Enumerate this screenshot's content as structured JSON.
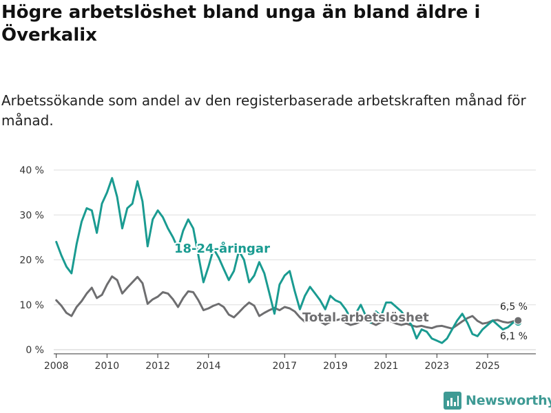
{
  "header": {
    "title": "Högre arbetslöshet bland unga än bland äldre i Överkalix",
    "subtitle": "Arbetssökande som andel av den registerbaserade arbetskraften månad för månad."
  },
  "brand": {
    "name": "Newsworthy"
  },
  "chart_data": {
    "type": "line",
    "title": "Högre arbetslöshet bland unga än bland äldre i Överkalix",
    "subtitle": "Arbetssökande som andel av den registerbaserade arbetskraften månad för månad.",
    "xlabel": "",
    "ylabel": "",
    "ylim": [
      0,
      40
    ],
    "xlim": [
      2007.9,
      2026.9
    ],
    "grid": true,
    "y_ticks": [
      {
        "value": 0,
        "label": "0 %"
      },
      {
        "value": 10,
        "label": "10 %"
      },
      {
        "value": 20,
        "label": "20 %"
      },
      {
        "value": 30,
        "label": "30 %"
      },
      {
        "value": 40,
        "label": "40 %"
      }
    ],
    "x_ticks": [
      {
        "value": 2008,
        "label": "2008"
      },
      {
        "value": 2010,
        "label": "2010"
      },
      {
        "value": 2012,
        "label": "2012"
      },
      {
        "value": 2014,
        "label": "2014"
      },
      {
        "value": 2017,
        "label": "2017"
      },
      {
        "value": 2019,
        "label": "2019"
      },
      {
        "value": 2021,
        "label": "2021"
      },
      {
        "value": 2023,
        "label": "2023"
      },
      {
        "value": 2025,
        "label": "2025"
      }
    ],
    "series": [
      {
        "name": "Total arbetslöshet",
        "label": "Total arbetslöshet",
        "color": "#6e6e70",
        "end_label": "6,5 %",
        "x": [
          2008.0,
          2008.2,
          2008.4,
          2008.6,
          2008.8,
          2009.0,
          2009.2,
          2009.4,
          2009.6,
          2009.8,
          2010.0,
          2010.2,
          2010.4,
          2010.6,
          2010.8,
          2011.0,
          2011.2,
          2011.4,
          2011.6,
          2011.8,
          2012.0,
          2012.2,
          2012.4,
          2012.6,
          2012.8,
          2013.0,
          2013.2,
          2013.4,
          2013.6,
          2013.8,
          2014.0,
          2014.2,
          2014.4,
          2014.6,
          2014.8,
          2015.0,
          2015.2,
          2015.4,
          2015.6,
          2015.8,
          2016.0,
          2016.2,
          2016.4,
          2016.6,
          2016.8,
          2017.0,
          2017.2,
          2017.4,
          2017.6,
          2017.8,
          2018.0,
          2018.2,
          2018.4,
          2018.6,
          2018.8,
          2019.0,
          2019.2,
          2019.4,
          2019.6,
          2019.8,
          2020.0,
          2020.2,
          2020.4,
          2020.6,
          2020.8,
          2021.0,
          2021.2,
          2021.4,
          2021.6,
          2021.8,
          2022.0,
          2022.2,
          2022.4,
          2022.6,
          2022.8,
          2023.0,
          2023.2,
          2023.4,
          2023.6,
          2023.8,
          2024.0,
          2024.2,
          2024.4,
          2024.6,
          2024.8,
          2025.0,
          2025.2,
          2025.4,
          2025.6,
          2025.8,
          2026.0,
          2026.2
        ],
        "y": [
          11.0,
          9.8,
          8.2,
          7.5,
          9.5,
          10.8,
          12.5,
          13.8,
          11.5,
          12.2,
          14.5,
          16.3,
          15.5,
          12.5,
          13.8,
          15.0,
          16.2,
          14.8,
          10.2,
          11.2,
          11.8,
          12.8,
          12.5,
          11.2,
          9.5,
          11.5,
          13.0,
          12.8,
          11.0,
          8.8,
          9.2,
          9.8,
          10.2,
          9.5,
          7.8,
          7.2,
          8.3,
          9.5,
          10.5,
          9.8,
          7.5,
          8.2,
          8.8,
          9.3,
          8.8,
          9.5,
          9.2,
          8.5,
          7.2,
          6.2,
          6.5,
          7.0,
          6.3,
          5.6,
          6.2,
          6.5,
          6.8,
          6.0,
          5.5,
          5.8,
          6.3,
          6.6,
          6.0,
          5.5,
          6.1,
          6.5,
          6.3,
          5.8,
          5.5,
          5.8,
          5.4,
          5.1,
          5.3,
          5.0,
          4.8,
          5.2,
          5.3,
          5.0,
          4.7,
          5.5,
          6.3,
          7.0,
          7.5,
          6.4,
          5.8,
          6.0,
          6.5,
          6.6,
          6.2,
          6.0,
          6.3,
          6.5
        ]
      },
      {
        "name": "18-24-åringar",
        "label": "18-24-åringar",
        "color": "#1a9b91",
        "end_label": "6,1 %",
        "x": [
          2008.0,
          2008.2,
          2008.4,
          2008.6,
          2008.8,
          2009.0,
          2009.2,
          2009.4,
          2009.6,
          2009.8,
          2010.0,
          2010.2,
          2010.4,
          2010.6,
          2010.8,
          2011.0,
          2011.2,
          2011.4,
          2011.6,
          2011.8,
          2012.0,
          2012.2,
          2012.4,
          2012.6,
          2012.8,
          2013.0,
          2013.2,
          2013.4,
          2013.6,
          2013.8,
          2014.0,
          2014.2,
          2014.4,
          2014.6,
          2014.8,
          2015.0,
          2015.2,
          2015.4,
          2015.6,
          2015.8,
          2016.0,
          2016.2,
          2016.4,
          2016.6,
          2016.8,
          2017.0,
          2017.2,
          2017.4,
          2017.6,
          2017.8,
          2018.0,
          2018.2,
          2018.4,
          2018.6,
          2018.8,
          2019.0,
          2019.2,
          2019.4,
          2019.6,
          2019.8,
          2020.0,
          2020.2,
          2020.4,
          2020.6,
          2020.8,
          2021.0,
          2021.2,
          2021.4,
          2021.6,
          2021.8,
          2022.0,
          2022.2,
          2022.4,
          2022.6,
          2022.8,
          2023.0,
          2023.2,
          2023.4,
          2023.6,
          2023.8,
          2024.0,
          2024.2,
          2024.4,
          2024.6,
          2024.8,
          2025.0,
          2025.2,
          2025.4,
          2025.6,
          2025.8,
          2026.0,
          2026.2
        ],
        "y": [
          24.0,
          21.0,
          18.5,
          17.0,
          23.5,
          28.5,
          31.5,
          31.0,
          26.0,
          32.5,
          35.0,
          38.2,
          34.0,
          27.0,
          31.5,
          32.5,
          37.5,
          33.0,
          23.0,
          29.0,
          31.0,
          29.5,
          27.0,
          25.0,
          22.5,
          26.5,
          29.0,
          27.0,
          21.0,
          15.0,
          18.5,
          22.5,
          20.5,
          18.0,
          15.5,
          17.5,
          22.0,
          20.0,
          15.0,
          16.5,
          19.5,
          17.0,
          12.5,
          8.0,
          14.5,
          16.5,
          17.5,
          13.0,
          9.0,
          12.0,
          14.0,
          12.5,
          11.0,
          9.0,
          12.0,
          11.0,
          10.5,
          9.0,
          7.0,
          8.0,
          10.0,
          7.5,
          6.0,
          8.5,
          7.5,
          10.5,
          10.5,
          9.5,
          8.5,
          7.0,
          5.5,
          2.5,
          4.5,
          4.0,
          2.5,
          2.0,
          1.5,
          2.5,
          4.5,
          6.5,
          8.0,
          6.0,
          3.5,
          3.0,
          4.5,
          5.5,
          6.5,
          5.5,
          4.5,
          5.0,
          6.0,
          6.1
        ]
      }
    ]
  }
}
